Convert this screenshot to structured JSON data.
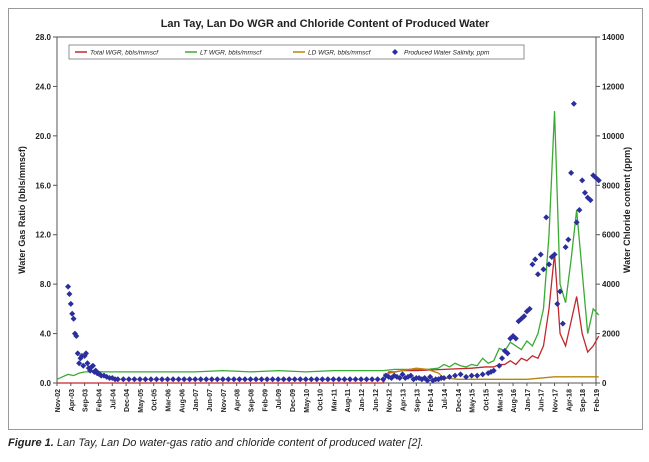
{
  "caption": {
    "label": "Figure 1.",
    "text": "Lan Tay, Lan Do water-gas ratio and chloride content of produced water [2]."
  },
  "chart_data": {
    "type": "line",
    "title": "Lan Tay, Lan Do WGR and Chloride Content of Produced Water",
    "ylabel": "Water Gas Ratio (bbls/mmscf)",
    "y2label": "Water Chloride content (ppm)",
    "ylim": [
      0,
      28
    ],
    "y2lim": [
      0,
      14000
    ],
    "yticks": [
      "0.0",
      "4.0",
      "8.0",
      "12.0",
      "16.0",
      "20.0",
      "24.0",
      "28.0"
    ],
    "y2ticks": [
      "0",
      "2000",
      "4000",
      "6000",
      "8000",
      "10000",
      "12000",
      "14000"
    ],
    "xticks": [
      "Nov-02",
      "Apr-03",
      "Sep-03",
      "Feb-04",
      "Jul-04",
      "Dec-04",
      "May-05",
      "Oct-05",
      "Mar-06",
      "Aug-06",
      "Jan-07",
      "Jun-07",
      "Nov-07",
      "Apr-08",
      "Sep-08",
      "Feb-09",
      "Jul-09",
      "Dec-09",
      "May-10",
      "Oct-10",
      "Mar-11",
      "Aug-11",
      "Jan-12",
      "Jun-12",
      "Nov-12",
      "Apr-13",
      "Sep-13",
      "Feb-14",
      "Jul-14",
      "Dec-14",
      "May-15",
      "Oct-15",
      "Mar-16",
      "Aug-16",
      "Jan-17",
      "Jun-17",
      "Nov-17",
      "Apr-18",
      "Sep-18",
      "Feb-19"
    ],
    "xtick_start_month": 0,
    "grid": false,
    "legend_position": "top",
    "colors": {
      "total": "#c0282d",
      "lt": "#3aaa35",
      "ld": "#b8860b",
      "salinity": "#2b2f9e",
      "plot_bg": "#ffffff",
      "frame_bg": "#ffffff"
    },
    "series": [
      {
        "name": "Total WGR, bbls/mmscf",
        "color": "#c0282d",
        "axis": "left",
        "x": [
          0,
          20,
          50,
          100,
          118,
          120,
          122,
          125,
          130,
          140,
          150,
          155,
          158,
          160,
          162,
          164,
          166,
          168,
          170,
          172,
          174,
          176,
          178,
          180,
          182,
          184,
          186,
          188,
          190,
          192,
          194,
          196
        ],
        "values": [
          0,
          0,
          0,
          0,
          0,
          0.9,
          0.9,
          1.0,
          1.0,
          1.1,
          1.2,
          1.3,
          1.3,
          1.5,
          1.5,
          1.8,
          1.5,
          2.0,
          1.8,
          2.2,
          2.0,
          3.0,
          6.0,
          10.5,
          4.0,
          3.0,
          5.0,
          7.0,
          4.0,
          2.5,
          3.0,
          3.8
        ]
      },
      {
        "name": "LT WGR, bbls/mmscf",
        "color": "#3aaa35",
        "axis": "left",
        "x": [
          0,
          2,
          4,
          6,
          8,
          10,
          12,
          14,
          16,
          20,
          30,
          40,
          50,
          60,
          70,
          80,
          90,
          100,
          110,
          118,
          122,
          128,
          134,
          138,
          140,
          142,
          144,
          146,
          148,
          150,
          152,
          154,
          156,
          158,
          160,
          162,
          164,
          166,
          168,
          170,
          172,
          174,
          176,
          178,
          180,
          182,
          184,
          186,
          188,
          190,
          192,
          194,
          196
        ],
        "values": [
          0.3,
          0.5,
          0.7,
          0.6,
          0.8,
          0.9,
          0.9,
          1.0,
          0.9,
          0.9,
          0.9,
          0.9,
          0.9,
          1.0,
          0.9,
          1.0,
          0.9,
          1.0,
          1.0,
          1.0,
          1.1,
          1.1,
          1.1,
          1.2,
          1.5,
          1.3,
          1.6,
          1.4,
          1.3,
          1.5,
          1.4,
          2.0,
          1.6,
          1.8,
          2.8,
          2.6,
          3.3,
          3.0,
          2.7,
          3.4,
          3.0,
          4.0,
          6.0,
          12.0,
          22.0,
          8.0,
          6.5,
          10.0,
          14.0,
          9.0,
          4.0,
          6.0,
          5.5
        ]
      },
      {
        "name": "LD WGR, bbls/mmscf",
        "color": "#b8860b",
        "axis": "left",
        "x": [
          118,
          125,
          130,
          134,
          138,
          140,
          145,
          150,
          155,
          160,
          165,
          170,
          175,
          180,
          185,
          190,
          196
        ],
        "values": [
          0.7,
          1.0,
          1.2,
          1.1,
          0.8,
          0.4,
          0.3,
          0.3,
          0.3,
          0.3,
          0.3,
          0.3,
          0.4,
          0.5,
          0.5,
          0.5,
          0.5
        ]
      },
      {
        "name": "Produced Water Salinity, ppm",
        "color": "#2b2f9e",
        "axis": "right",
        "type": "scatter",
        "x": [
          4,
          4.5,
          5,
          5.5,
          6,
          6.5,
          7,
          7.5,
          8,
          8.5,
          9,
          9.5,
          10,
          10.5,
          11,
          11.5,
          12,
          12.5,
          13,
          13.5,
          14,
          14.5,
          15,
          15.5,
          16,
          17,
          18,
          19,
          20,
          21,
          22,
          24,
          26,
          28,
          30,
          32,
          34,
          36,
          38,
          40,
          42,
          44,
          46,
          48,
          50,
          52,
          54,
          56,
          58,
          60,
          62,
          64,
          66,
          68,
          70,
          72,
          74,
          76,
          78,
          80,
          82,
          84,
          86,
          88,
          90,
          92,
          94,
          96,
          98,
          100,
          102,
          104,
          106,
          108,
          110,
          112,
          114,
          116,
          118,
          119,
          120,
          121,
          122,
          123,
          124,
          125,
          126,
          127,
          128,
          129,
          130,
          131,
          132,
          133,
          134,
          135,
          136,
          137,
          138,
          139,
          140,
          142,
          144,
          146,
          148,
          150,
          152,
          154,
          156,
          157,
          158,
          160,
          161,
          162,
          163,
          164,
          165,
          166,
          167,
          168,
          169,
          170,
          171,
          172,
          173,
          174,
          175,
          176,
          177,
          178,
          179,
          180,
          181,
          182,
          183,
          184,
          185,
          186,
          187,
          188,
          189,
          190,
          191,
          192,
          193,
          194,
          195,
          196
        ],
        "values": [
          3900,
          3600,
          3200,
          2800,
          2600,
          2000,
          1900,
          1200,
          800,
          1000,
          1100,
          700,
          1100,
          1200,
          800,
          600,
          500,
          650,
          700,
          450,
          500,
          400,
          380,
          350,
          300,
          300,
          250,
          200,
          200,
          150,
          150,
          150,
          150,
          150,
          150,
          150,
          150,
          150,
          150,
          150,
          150,
          150,
          150,
          150,
          150,
          150,
          150,
          150,
          150,
          150,
          150,
          150,
          150,
          150,
          150,
          150,
          150,
          150,
          150,
          150,
          150,
          150,
          150,
          150,
          150,
          150,
          150,
          150,
          150,
          150,
          150,
          150,
          150,
          150,
          150,
          150,
          150,
          150,
          150,
          300,
          250,
          200,
          300,
          250,
          200,
          350,
          200,
          250,
          300,
          150,
          200,
          200,
          150,
          200,
          100,
          250,
          100,
          150,
          150,
          200,
          200,
          250,
          300,
          350,
          250,
          300,
          300,
          350,
          400,
          450,
          500,
          700,
          1000,
          1300,
          1200,
          1800,
          1900,
          1800,
          2500,
          2600,
          2700,
          2900,
          3000,
          4800,
          5000,
          4400,
          5200,
          4600,
          6700,
          4800,
          5100,
          5200,
          3200,
          3700,
          2400,
          5500,
          5800,
          8500,
          11300,
          6500,
          7000,
          8200,
          7700,
          7500,
          7400,
          8400,
          8300,
          8200
        ]
      }
    ]
  }
}
